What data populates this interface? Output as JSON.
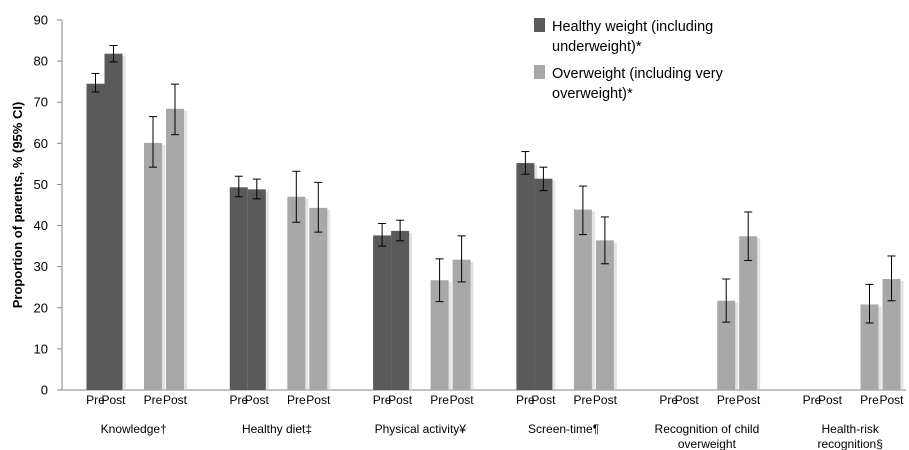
{
  "chart_data": {
    "type": "bar",
    "ylabel": "Proportion of parents, % (95% CI)",
    "ylim": [
      0,
      90
    ],
    "yticks": [
      0,
      10,
      20,
      30,
      40,
      50,
      60,
      70,
      80,
      90
    ],
    "grid": false,
    "legend_position": "top-right",
    "period_labels": [
      "Pre",
      "Post"
    ],
    "categories": [
      [
        "Knowledge†"
      ],
      [
        "Healthy diet‡"
      ],
      [
        "Physical activity¥"
      ],
      [
        "Screen-time¶"
      ],
      [
        "Recognition of child",
        "overweight"
      ],
      [
        "Health-risk",
        "recognition§"
      ]
    ],
    "series": [
      {
        "name": [
          "Healthy weight (including",
          "underweight)*"
        ],
        "color": "#5a5a5a",
        "pre": [
          {
            "v": 74.5,
            "lo": 72.5,
            "hi": 77.0
          },
          {
            "v": 49.3,
            "lo": 47.0,
            "hi": 52.0
          },
          {
            "v": 37.6,
            "lo": 35.0,
            "hi": 40.5
          },
          {
            "v": 55.2,
            "lo": 52.5,
            "hi": 58.0
          },
          null,
          null
        ],
        "post": [
          {
            "v": 81.8,
            "lo": 79.8,
            "hi": 83.8
          },
          {
            "v": 48.8,
            "lo": 46.5,
            "hi": 51.3
          },
          {
            "v": 38.7,
            "lo": 36.3,
            "hi": 41.3
          },
          {
            "v": 51.4,
            "lo": 48.5,
            "hi": 54.2
          },
          null,
          null
        ]
      },
      {
        "name": [
          "Overweight (including very",
          "overweight)*"
        ],
        "color": "#a8a8a8",
        "pre": [
          {
            "v": 60.1,
            "lo": 54.2,
            "hi": 66.5
          },
          {
            "v": 47.0,
            "lo": 40.8,
            "hi": 53.2
          },
          {
            "v": 26.7,
            "lo": 21.5,
            "hi": 31.9
          },
          {
            "v": 43.9,
            "lo": 37.8,
            "hi": 49.6
          },
          {
            "v": 21.7,
            "lo": 16.5,
            "hi": 27.0
          },
          {
            "v": 20.8,
            "lo": 16.3,
            "hi": 25.7
          }
        ],
        "post": [
          {
            "v": 68.4,
            "lo": 62.1,
            "hi": 74.4
          },
          {
            "v": 44.3,
            "lo": 38.4,
            "hi": 50.5
          },
          {
            "v": 31.7,
            "lo": 26.3,
            "hi": 37.5
          },
          {
            "v": 36.4,
            "lo": 30.7,
            "hi": 42.1
          },
          {
            "v": 37.4,
            "lo": 31.5,
            "hi": 43.3
          },
          {
            "v": 27.0,
            "lo": 21.7,
            "hi": 32.6
          }
        ]
      }
    ]
  }
}
